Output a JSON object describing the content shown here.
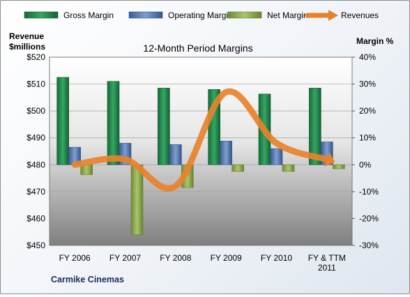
{
  "chart_data": {
    "type": "bar",
    "title": "12-Month Period Margins",
    "company": "Carmike Cinemas",
    "categories": [
      "FY 2006",
      "FY 2007",
      "FY 2008",
      "FY 2009",
      "FY 2010",
      "FY & TTM 2011"
    ],
    "left_axis": {
      "label_line1": "Revenue",
      "label_line2": "$millions",
      "ticks": [
        "$520",
        "$510",
        "$500",
        "$490",
        "$480",
        "$470",
        "$460",
        "$450"
      ],
      "range": [
        450,
        520
      ]
    },
    "right_axis": {
      "label": "Margin %",
      "ticks": [
        "40%",
        "30%",
        "20%",
        "10%",
        "0%",
        "-10%",
        "-20%",
        "-30%"
      ],
      "range": [
        -30,
        40
      ]
    },
    "series": [
      {
        "name": "Gross Margin",
        "axis": "right",
        "color": "#1f7a45",
        "values": [
          32.5,
          31.0,
          28.5,
          28.0,
          26.3,
          28.5
        ]
      },
      {
        "name": "Operating Margin",
        "axis": "right",
        "color": "#4a6fa5",
        "values": [
          6.5,
          8.0,
          7.5,
          8.8,
          6.0,
          8.5
        ]
      },
      {
        "name": "Net Margin",
        "axis": "right",
        "color": "#8aa84a",
        "values": [
          -3.7,
          -26.0,
          -8.5,
          -2.5,
          -2.5,
          -1.5
        ]
      },
      {
        "name": "Revenues",
        "axis": "left",
        "type": "line",
        "color": "#e8822a",
        "values": [
          480,
          482,
          472,
          507,
          488,
          482
        ]
      }
    ],
    "grid": true,
    "legend": "top"
  }
}
